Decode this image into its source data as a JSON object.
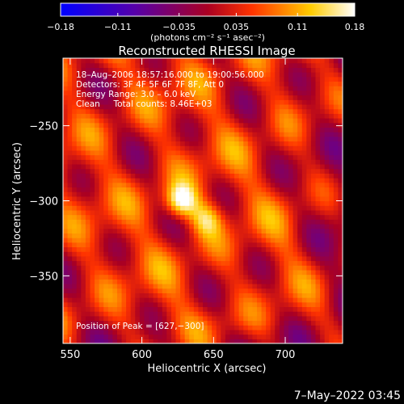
{
  "chart_data": {
    "type": "heatmap",
    "title": "Reconstructed RHESSI Image",
    "xlabel": "Heliocentric X (arcsec)",
    "ylabel": "Heliocentric Y (arcsec)",
    "xlim": [
      545,
      740
    ],
    "ylim": [
      -395,
      -205
    ],
    "x_ticks": [
      550,
      600,
      650,
      700
    ],
    "y_ticks": [
      -250,
      -300,
      -350
    ],
    "y_tick_labels": [
      "−250",
      "−300",
      "−350"
    ],
    "grid": false,
    "colorbar": {
      "colormap": "blue-violet-red-yellow-white",
      "colors": [
        "#0000ff",
        "#5500aa",
        "#aa0022",
        "#ff3300",
        "#ffcc00",
        "#ffffff"
      ],
      "min": -0.18,
      "max": 0.18,
      "ticks": [
        -0.18,
        -0.11,
        -0.035,
        0.035,
        0.11,
        0.18
      ],
      "tick_labels": [
        "−0.18",
        "−0.11",
        "−0.035",
        "0.035",
        "0.11",
        "0.18"
      ],
      "units": "(photons cm⁻² s⁻¹ asec⁻²)"
    },
    "annotations": [
      "18–Aug–2006 18:57:16.000 to 19:00:56.000",
      "Detectors: 3F 4F 5F 6F 7F 8F, Att 0",
      "Energy Range: 3.0 – 6.0 keV",
      "Clean     Total counts: 8.46E+03"
    ],
    "peak": {
      "x": 627,
      "y": -300,
      "label": "Position of Peak = [627,−300]"
    },
    "secondary_source": {
      "x": 645,
      "y": -312
    },
    "timestamp": "7–May–2022 03:45"
  }
}
